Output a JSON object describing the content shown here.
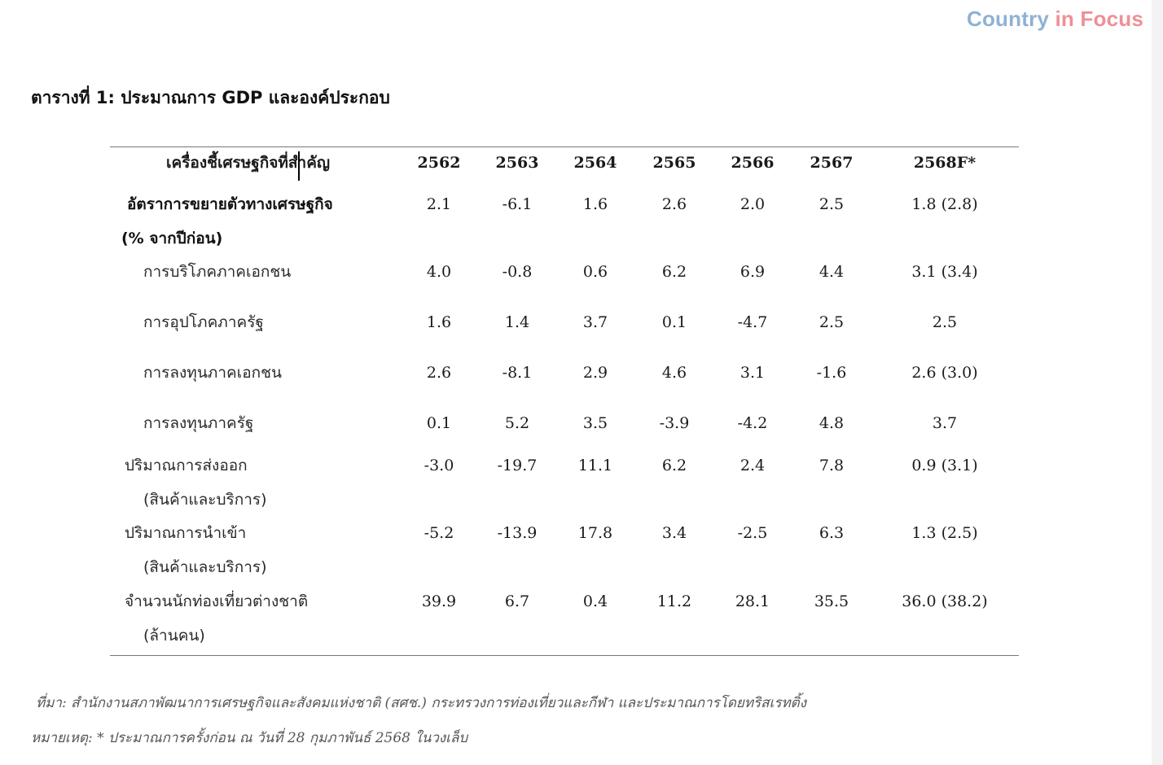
{
  "brand": {
    "part1": "Country",
    "part2": "in Focus"
  },
  "table": {
    "title": "ตารางที่ 1: ประมาณการ GDP และองค์ประกอบ",
    "header": {
      "label": "เครื่องชี้เศรษฐกิจที่สำคัญ",
      "years": [
        "2562",
        "2563",
        "2564",
        "2565",
        "2566",
        "2567",
        "2568F*"
      ]
    },
    "rows": [
      {
        "label": "อัตราการขยายตัวทางเศรษฐกิจ",
        "label2": "(% จากปีก่อน)",
        "values": [
          "2.1",
          "-6.1",
          "1.6",
          "2.6",
          "2.0",
          "2.5",
          "1.8 (2.8)"
        ]
      },
      {
        "label": "การบริโภคภาคเอกชน",
        "values": [
          "4.0",
          "-0.8",
          "0.6",
          "6.2",
          "6.9",
          "4.4",
          "3.1 (3.4)"
        ]
      },
      {
        "label": "การอุปโภคภาครัฐ",
        "values": [
          "1.6",
          "1.4",
          "3.7",
          "0.1",
          "-4.7",
          "2.5",
          "2.5"
        ]
      },
      {
        "label": "การลงทุนภาคเอกชน",
        "values": [
          "2.6",
          "-8.1",
          "2.9",
          "4.6",
          "3.1",
          "-1.6",
          "2.6 (3.0)"
        ]
      },
      {
        "label": "การลงทุนภาครัฐ",
        "values": [
          "0.1",
          "5.2",
          "3.5",
          "-3.9",
          "-4.2",
          "4.8",
          "3.7"
        ]
      },
      {
        "label": "ปริมาณการส่งออก",
        "label2": "(สินค้าและบริการ)",
        "values": [
          "-3.0",
          "-19.7",
          "11.1",
          "6.2",
          "2.4",
          "7.8",
          "0.9 (3.1)"
        ]
      },
      {
        "label": "ปริมาณการนำเข้า",
        "label2": "(สินค้าและบริการ)",
        "values": [
          "-5.2",
          "-13.9",
          "17.8",
          "3.4",
          "-2.5",
          "6.3",
          "1.3 (2.5)"
        ]
      },
      {
        "label": "จำนวนนักท่องเที่ยวต่างชาติ",
        "label2": "(ล้านคน)",
        "values": [
          "39.9",
          "6.7",
          "0.4",
          "11.2",
          "28.1",
          "35.5",
          "36.0 (38.2)"
        ]
      }
    ]
  },
  "notes": {
    "source": "ที่มา: สำนักงานสภาพัฒนาการเศรษฐกิจและสังคมแห่งชาติ (สศช.) กระทรวงการท่องเที่ยวและกีฬา และประมาณการโดยทริสเรทติ้ง",
    "remark": "หมายเหตุ: * ประมาณการครั้งก่อน ณ วันที่ 28 กุมภาพันธ์ 2568 ในวงเล็บ"
  }
}
